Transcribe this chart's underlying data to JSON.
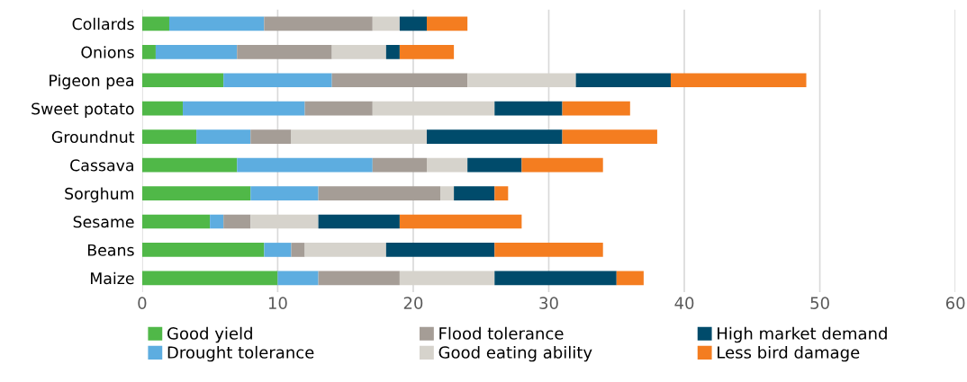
{
  "chart_data": {
    "type": "bar",
    "orientation": "horizontal",
    "stacked": true,
    "categories": [
      "Collards",
      "Onions",
      "Pigeon pea",
      "Sweet potato",
      "Groundnut",
      "Cassava",
      "Sorghum",
      "Sesame",
      "Beans",
      "Maize"
    ],
    "series": [
      {
        "name": "Good yield",
        "color": "#50b848",
        "values": [
          2,
          1,
          6,
          3,
          4,
          7,
          8,
          5,
          9,
          10
        ]
      },
      {
        "name": "Drought tolerance",
        "color": "#5dade0",
        "values": [
          7,
          6,
          8,
          9,
          4,
          10,
          5,
          1,
          2,
          3
        ]
      },
      {
        "name": "Flood tolerance",
        "color": "#a59d96",
        "values": [
          8,
          7,
          10,
          5,
          3,
          4,
          9,
          2,
          1,
          6
        ]
      },
      {
        "name": "Good eating ability",
        "color": "#d6d3cc",
        "values": [
          2,
          4,
          8,
          9,
          10,
          3,
          1,
          5,
          6,
          7
        ]
      },
      {
        "name": "High market demand",
        "color": "#004b6b",
        "values": [
          2,
          1,
          7,
          5,
          10,
          4,
          3,
          6,
          8,
          9
        ]
      },
      {
        "name": "Less bird damage",
        "color": "#f47d20",
        "values": [
          3,
          4,
          10,
          5,
          7,
          6,
          1,
          9,
          8,
          2
        ]
      }
    ],
    "xlim": [
      0,
      60
    ],
    "xticks": [
      0,
      10,
      20,
      30,
      40,
      50,
      60
    ],
    "grid": "x",
    "legend": "bottom"
  }
}
